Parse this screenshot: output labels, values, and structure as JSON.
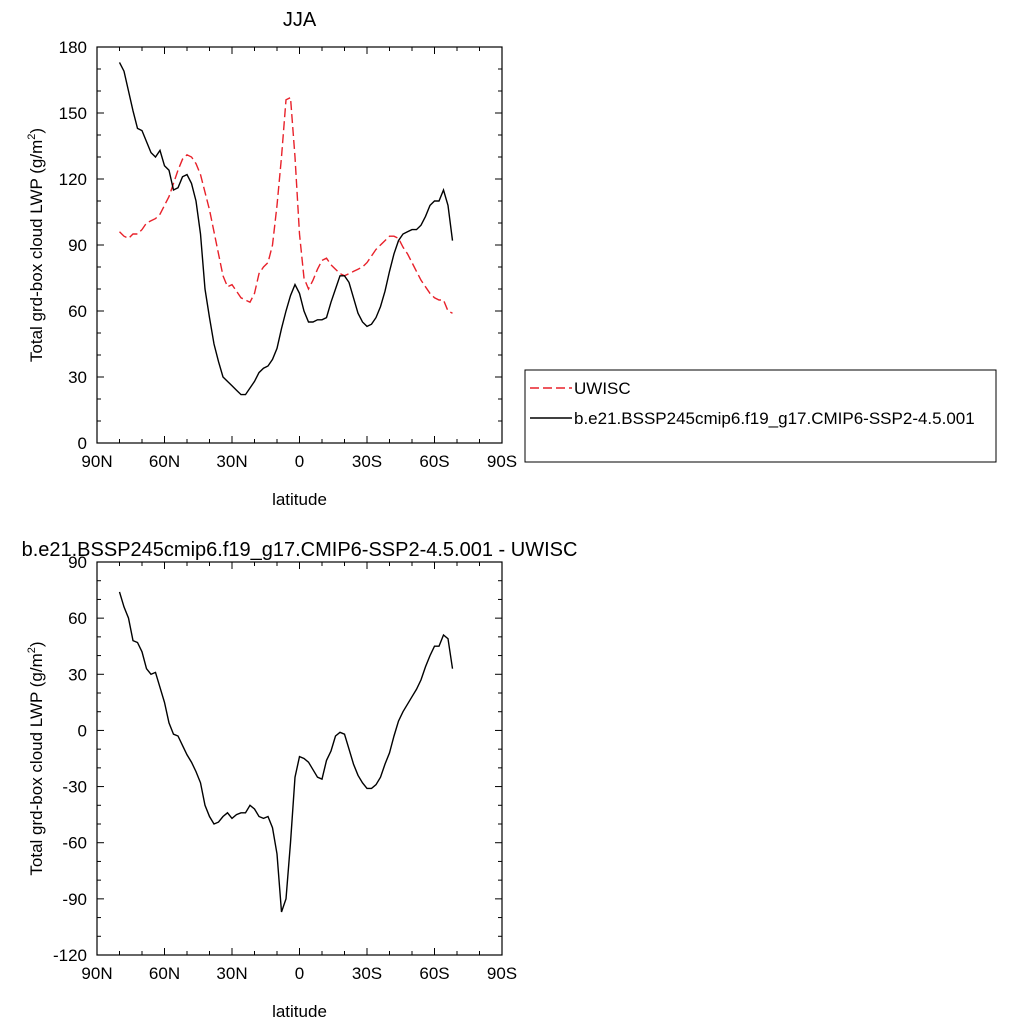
{
  "chart_data": [
    {
      "type": "line",
      "title": "JJA",
      "xlabel": "latitude",
      "ylabel_main": "Total grd-box cloud LWP (g/m",
      "ylabel_sup": "2",
      "ylabel_close": ")",
      "xlim": [
        90,
        -90
      ],
      "ylim": [
        0,
        180
      ],
      "xticks": [
        90,
        60,
        30,
        0,
        -30,
        -60,
        -90
      ],
      "xtick_labels": [
        "90N",
        "60N",
        "30N",
        "0",
        "30S",
        "60S",
        "90S"
      ],
      "yticks": [
        0,
        30,
        60,
        90,
        120,
        150,
        180
      ],
      "ytick_labels": [
        "0",
        "30",
        "60",
        "90",
        "120",
        "150",
        "180"
      ],
      "legend_position": "right",
      "series": [
        {
          "name": "UWISC",
          "color": "#e8212a",
          "dash": "dashed",
          "x": [
            80,
            78,
            76,
            74,
            72,
            70,
            68,
            66,
            64,
            62,
            60,
            58,
            56,
            54,
            52,
            50,
            48,
            46,
            44,
            42,
            40,
            38,
            36,
            34,
            32,
            30,
            28,
            26,
            24,
            22,
            20,
            18,
            16,
            14,
            12,
            10,
            8,
            6,
            4,
            2,
            0,
            -2,
            -4,
            -6,
            -8,
            -10,
            -12,
            -14,
            -16,
            -18,
            -20,
            -22,
            -24,
            -26,
            -28,
            -30,
            -32,
            -34,
            -36,
            -38,
            -40,
            -42,
            -44,
            -46,
            -48,
            -50,
            -52,
            -54,
            -56,
            -58,
            -60,
            -62,
            -64,
            -66,
            -68
          ],
          "y": [
            96,
            94,
            93,
            95,
            95,
            97,
            100,
            101,
            102,
            104,
            108,
            112,
            118,
            124,
            129,
            131,
            130,
            127,
            122,
            114,
            106,
            96,
            86,
            76,
            71,
            72,
            69,
            66,
            65,
            64,
            68,
            77,
            80,
            82,
            90,
            108,
            130,
            156,
            157,
            130,
            95,
            75,
            70,
            74,
            79,
            83,
            84,
            81,
            79,
            77,
            76,
            77,
            78,
            79,
            80,
            82,
            85,
            88,
            90,
            92,
            94,
            94,
            93,
            89,
            86,
            82,
            78,
            74,
            71,
            68,
            66,
            65,
            65,
            60,
            59
          ]
        },
        {
          "name": "b.e21.BSSP245cmip6.f19_g17.CMIP6-SSP2-4.5.001",
          "color": "#000000",
          "dash": "solid",
          "x": [
            80,
            78,
            76,
            74,
            72,
            70,
            68,
            66,
            64,
            62,
            60,
            58,
            56,
            54,
            52,
            50,
            48,
            46,
            44,
            42,
            40,
            38,
            36,
            34,
            32,
            30,
            28,
            26,
            24,
            22,
            20,
            18,
            16,
            14,
            12,
            10,
            8,
            6,
            4,
            2,
            0,
            -2,
            -4,
            -6,
            -8,
            -10,
            -12,
            -14,
            -16,
            -18,
            -20,
            -22,
            -24,
            -26,
            -28,
            -30,
            -32,
            -34,
            -36,
            -38,
            -40,
            -42,
            -44,
            -46,
            -48,
            -50,
            -52,
            -54,
            -56,
            -58,
            -60,
            -62,
            -64,
            -66,
            -68
          ],
          "y": [
            173,
            169,
            160,
            151,
            143,
            142,
            137,
            132,
            130,
            133,
            126,
            124,
            115,
            116,
            121,
            122,
            118,
            110,
            95,
            70,
            57,
            45,
            37,
            30,
            28,
            26,
            24,
            22,
            22,
            25,
            28,
            32,
            34,
            35,
            38,
            43,
            52,
            60,
            67,
            72,
            68,
            60,
            55,
            55,
            56,
            56,
            57,
            64,
            70,
            76,
            76,
            73,
            66,
            59,
            55,
            53,
            54,
            57,
            62,
            69,
            78,
            86,
            92,
            95,
            96,
            97,
            97,
            99,
            103,
            108,
            110,
            110,
            115,
            108,
            92
          ]
        }
      ]
    },
    {
      "type": "line",
      "title": "b.e21.BSSP245cmip6.f19_g17.CMIP6-SSP2-4.5.001 - UWISC",
      "xlabel": "latitude",
      "ylabel_main": "Total grd-box cloud LWP (g/m",
      "ylabel_sup": "2",
      "ylabel_close": ")",
      "xlim": [
        90,
        -90
      ],
      "ylim": [
        -120,
        90
      ],
      "xticks": [
        90,
        60,
        30,
        0,
        -30,
        -60,
        -90
      ],
      "xtick_labels": [
        "90N",
        "60N",
        "30N",
        "0",
        "30S",
        "60S",
        "90S"
      ],
      "yticks": [
        -120,
        -90,
        -60,
        -30,
        0,
        30,
        60,
        90
      ],
      "ytick_labels": [
        "-120",
        "-90",
        "-60",
        "-30",
        "0",
        "30",
        "60",
        "90"
      ],
      "series": [
        {
          "color": "#000000",
          "dash": "solid",
          "x": [
            80,
            78,
            76,
            74,
            72,
            70,
            68,
            66,
            64,
            62,
            60,
            58,
            56,
            54,
            52,
            50,
            48,
            46,
            44,
            42,
            40,
            38,
            36,
            34,
            32,
            30,
            28,
            26,
            24,
            22,
            20,
            18,
            16,
            14,
            12,
            10,
            8,
            6,
            4,
            2,
            0,
            -2,
            -4,
            -6,
            -8,
            -10,
            -12,
            -14,
            -16,
            -18,
            -20,
            -22,
            -24,
            -26,
            -28,
            -30,
            -32,
            -34,
            -36,
            -38,
            -40,
            -42,
            -44,
            -46,
            -48,
            -50,
            -52,
            -54,
            -56,
            -58,
            -60,
            -62,
            -64,
            -66,
            -68
          ],
          "y": [
            74,
            66,
            60,
            48,
            47,
            42,
            33,
            30,
            31,
            23,
            15,
            4,
            -2,
            -3,
            -8,
            -13,
            -17,
            -22,
            -28,
            -40,
            -46,
            -50,
            -49,
            -46,
            -44,
            -47,
            -45,
            -44,
            -44,
            -40,
            -42,
            -46,
            -47,
            -46,
            -52,
            -66,
            -97,
            -90,
            -60,
            -25,
            -14,
            -15,
            -17,
            -21,
            -25,
            -26,
            -16,
            -11,
            -3,
            -1,
            -2,
            -10,
            -18,
            -24,
            -28,
            -31,
            -31,
            -29,
            -25,
            -18,
            -12,
            -3,
            5,
            10,
            14,
            18,
            22,
            27,
            34,
            40,
            45,
            45,
            51,
            49,
            33
          ]
        }
      ]
    }
  ]
}
